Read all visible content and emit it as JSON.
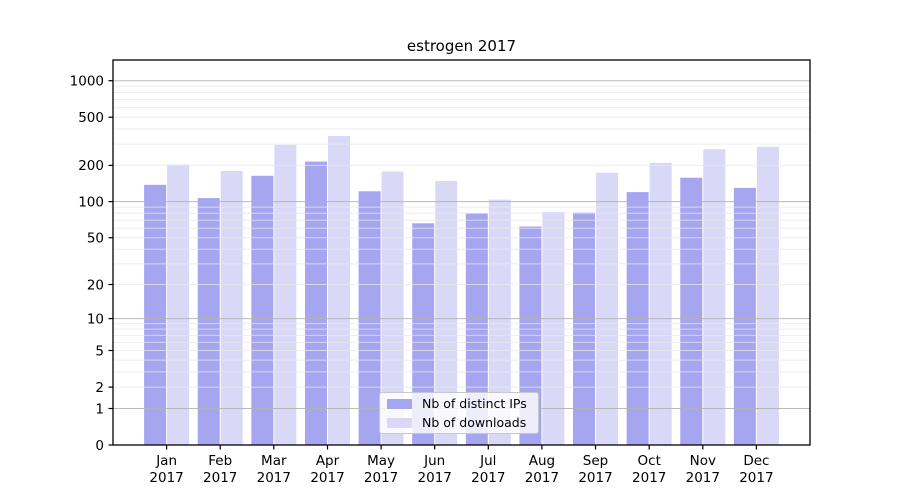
{
  "chart_data": {
    "type": "bar",
    "title": "estrogen 2017",
    "categories": [
      "Jan",
      "Feb",
      "Mar",
      "Apr",
      "May",
      "Jun",
      "Jul",
      "Aug",
      "Sep",
      "Oct",
      "Nov",
      "Dec"
    ],
    "category_year": "2017",
    "series": [
      {
        "name": "Nb of distinct IPs",
        "color": "#a5a5f0",
        "values": [
          138,
          107,
          164,
          215,
          122,
          66,
          80,
          62,
          81,
          120,
          158,
          130
        ]
      },
      {
        "name": "Nb of downloads",
        "color": "#d9d9f7",
        "values": [
          203,
          180,
          295,
          350,
          178,
          148,
          104,
          82,
          174,
          210,
          272,
          285
        ]
      }
    ],
    "y_axis": {
      "scale": "log2(x+1)",
      "tick_labels": [
        0,
        1,
        2,
        5,
        10,
        20,
        50,
        100,
        200,
        500,
        1000
      ],
      "major_gridlines": [
        1,
        10,
        100,
        1000
      ],
      "minor_gridlines": [
        2,
        3,
        4,
        5,
        6,
        7,
        8,
        9,
        20,
        30,
        40,
        50,
        60,
        70,
        80,
        90,
        200,
        300,
        400,
        500,
        600,
        700,
        800,
        900
      ],
      "ylim": [
        0,
        1100
      ],
      "grid": "on"
    },
    "legend": {
      "position": "inside-bottom-center"
    },
    "colors": {
      "major_grid": "#b3b3b3",
      "minor_grid": "#e8e8e8",
      "axis": "#000000",
      "background": "#ffffff",
      "text": "#000000"
    }
  }
}
